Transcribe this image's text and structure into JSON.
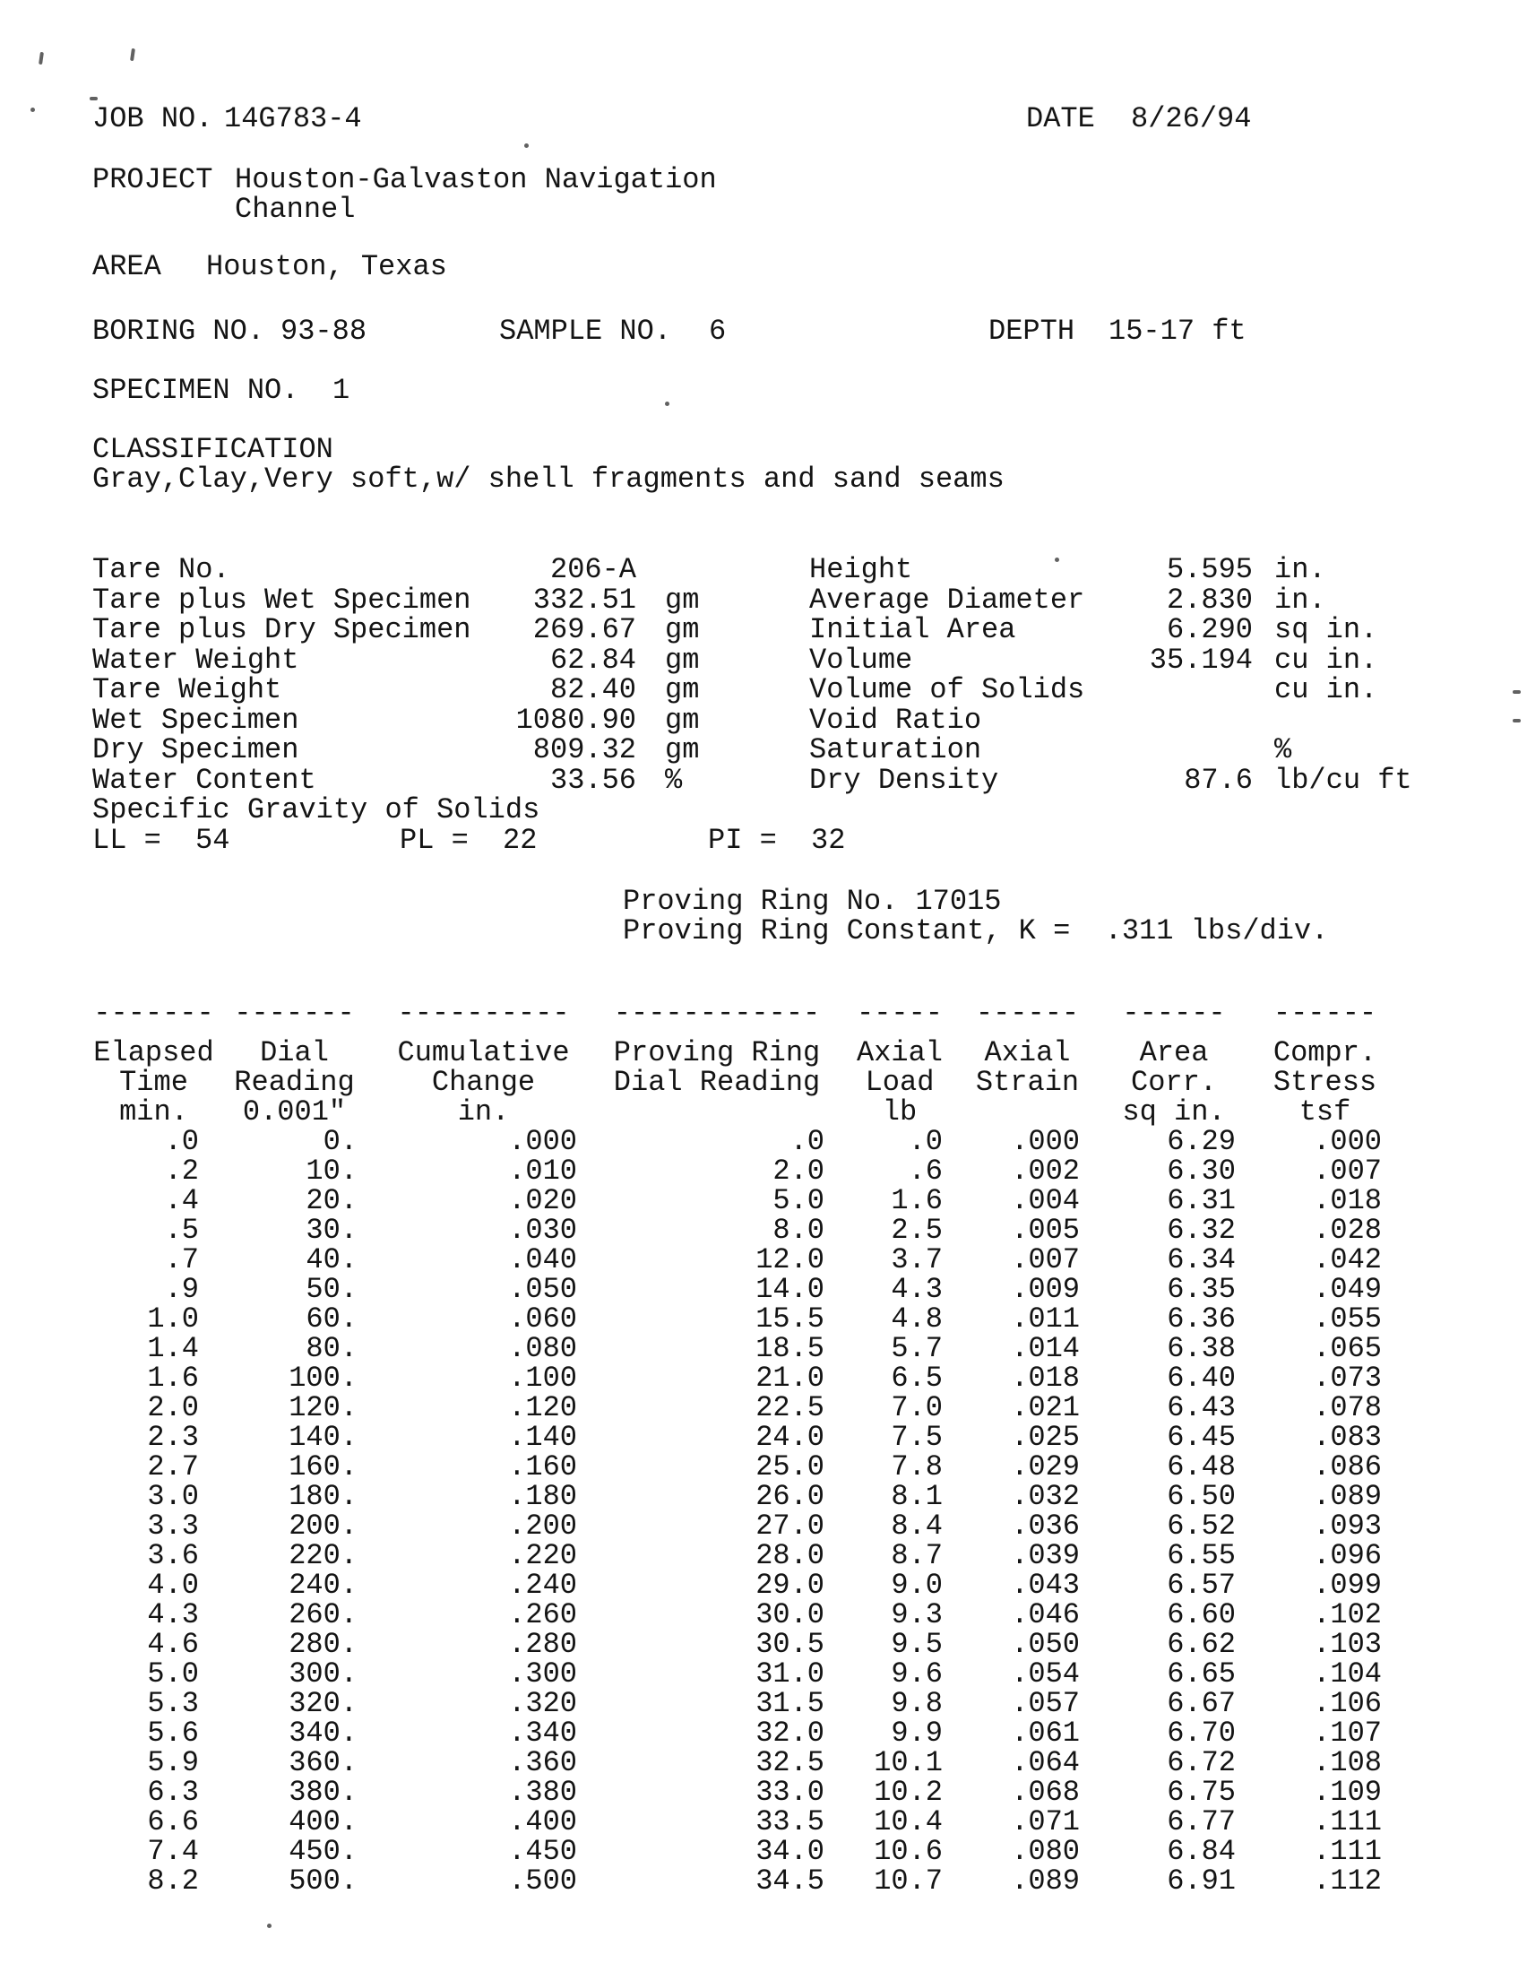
{
  "header": {
    "job_label": "JOB NO.",
    "job_value": "14G783-4",
    "date_label": "DATE",
    "date_value": "8/26/94",
    "project_label": "PROJECT",
    "project_line1": "Houston-Galvaston Navigation",
    "project_line2": "Channel",
    "area_label": "AREA",
    "area_value": "Houston, Texas",
    "boring_label": "BORING NO.",
    "boring_value": "93-88",
    "sample_label": "SAMPLE NO.",
    "sample_value": "6",
    "depth_label": "DEPTH",
    "depth_value": "15-17 ft",
    "specimen_label": "SPECIMEN NO.",
    "specimen_value": "1",
    "classification_label": "CLASSIFICATION",
    "classification_text": "Gray,Clay,Very soft,w/ shell fragments and sand seams"
  },
  "specimen_data": {
    "left": [
      {
        "label": "Tare No.",
        "value": "206-A",
        "unit": ""
      },
      {
        "label": "Tare plus Wet Specimen",
        "value": "332.51",
        "unit": "gm"
      },
      {
        "label": "Tare plus Dry Specimen",
        "value": "269.67",
        "unit": "gm"
      },
      {
        "label": "Water Weight",
        "value": "62.84",
        "unit": "gm"
      },
      {
        "label": "Tare Weight",
        "value": "82.40",
        "unit": "gm"
      },
      {
        "label": "Wet Specimen",
        "value": "1080.90",
        "unit": "gm"
      },
      {
        "label": "Dry Specimen",
        "value": "809.32",
        "unit": "gm"
      },
      {
        "label": "Water Content",
        "value": "33.56",
        "unit": "%"
      },
      {
        "label": "Specific Gravity of Solids",
        "value": "",
        "unit": ""
      }
    ],
    "right": [
      {
        "label": "Height",
        "value": "5.595",
        "unit": "in."
      },
      {
        "label": "Average Diameter",
        "value": "2.830",
        "unit": "in."
      },
      {
        "label": "Initial Area",
        "value": "6.290",
        "unit": "sq in."
      },
      {
        "label": "Volume",
        "value": "35.194",
        "unit": "cu in."
      },
      {
        "label": "Volume of Solids",
        "value": "",
        "unit": "cu in."
      },
      {
        "label": "Void Ratio",
        "value": "",
        "unit": ""
      },
      {
        "label": "Saturation",
        "value": "",
        "unit": "%"
      },
      {
        "label": "Dry Density",
        "value": "87.6",
        "unit": "lb/cu ft"
      }
    ],
    "atterberg": {
      "ll_label": "LL =",
      "ll_value": "54",
      "pl_label": "PL =",
      "pl_value": "22",
      "pi_label": "PI =",
      "pi_value": "32"
    },
    "proving_ring_no": "Proving Ring No. 17015",
    "proving_ring_constant": "Proving Ring Constant, K =  .311 lbs/div."
  },
  "table": {
    "header_rows": [
      [
        "Elapsed",
        "Dial",
        "Cumulative",
        "Proving Ring",
        "Axial",
        "Axial",
        "Area",
        "Compr."
      ],
      [
        "Time",
        "Reading",
        "Change",
        "Dial Reading",
        "Load",
        "Strain",
        "Corr.",
        "Stress"
      ],
      [
        "min.",
        "0.001\"",
        "in.",
        "",
        "lb",
        "",
        "sq in.",
        "tsf"
      ]
    ],
    "separator": [
      "-------",
      "-------",
      "----------",
      "------------",
      "-----",
      "------",
      "------",
      "------"
    ],
    "rows": [
      [
        ".0",
        "0.",
        ".000",
        ".0",
        ".0",
        ".000",
        "6.29",
        ".000"
      ],
      [
        ".2",
        "10.",
        ".010",
        "2.0",
        ".6",
        ".002",
        "6.30",
        ".007"
      ],
      [
        ".4",
        "20.",
        ".020",
        "5.0",
        "1.6",
        ".004",
        "6.31",
        ".018"
      ],
      [
        ".5",
        "30.",
        ".030",
        "8.0",
        "2.5",
        ".005",
        "6.32",
        ".028"
      ],
      [
        ".7",
        "40.",
        ".040",
        "12.0",
        "3.7",
        ".007",
        "6.34",
        ".042"
      ],
      [
        ".9",
        "50.",
        ".050",
        "14.0",
        "4.3",
        ".009",
        "6.35",
        ".049"
      ],
      [
        "1.0",
        "60.",
        ".060",
        "15.5",
        "4.8",
        ".011",
        "6.36",
        ".055"
      ],
      [
        "1.4",
        "80.",
        ".080",
        "18.5",
        "5.7",
        ".014",
        "6.38",
        ".065"
      ],
      [
        "1.6",
        "100.",
        ".100",
        "21.0",
        "6.5",
        ".018",
        "6.40",
        ".073"
      ],
      [
        "2.0",
        "120.",
        ".120",
        "22.5",
        "7.0",
        ".021",
        "6.43",
        ".078"
      ],
      [
        "2.3",
        "140.",
        ".140",
        "24.0",
        "7.5",
        ".025",
        "6.45",
        ".083"
      ],
      [
        "2.7",
        "160.",
        ".160",
        "25.0",
        "7.8",
        ".029",
        "6.48",
        ".086"
      ],
      [
        "3.0",
        "180.",
        ".180",
        "26.0",
        "8.1",
        ".032",
        "6.50",
        ".089"
      ],
      [
        "3.3",
        "200.",
        ".200",
        "27.0",
        "8.4",
        ".036",
        "6.52",
        ".093"
      ],
      [
        "3.6",
        "220.",
        ".220",
        "28.0",
        "8.7",
        ".039",
        "6.55",
        ".096"
      ],
      [
        "4.0",
        "240.",
        ".240",
        "29.0",
        "9.0",
        ".043",
        "6.57",
        ".099"
      ],
      [
        "4.3",
        "260.",
        ".260",
        "30.0",
        "9.3",
        ".046",
        "6.60",
        ".102"
      ],
      [
        "4.6",
        "280.",
        ".280",
        "30.5",
        "9.5",
        ".050",
        "6.62",
        ".103"
      ],
      [
        "5.0",
        "300.",
        ".300",
        "31.0",
        "9.6",
        ".054",
        "6.65",
        ".104"
      ],
      [
        "5.3",
        "320.",
        ".320",
        "31.5",
        "9.8",
        ".057",
        "6.67",
        ".106"
      ],
      [
        "5.6",
        "340.",
        ".340",
        "32.0",
        "9.9",
        ".061",
        "6.70",
        ".107"
      ],
      [
        "5.9",
        "360.",
        ".360",
        "32.5",
        "10.1",
        ".064",
        "6.72",
        ".108"
      ],
      [
        "6.3",
        "380.",
        ".380",
        "33.0",
        "10.2",
        ".068",
        "6.75",
        ".109"
      ],
      [
        "6.6",
        "400.",
        ".400",
        "33.5",
        "10.4",
        ".071",
        "6.77",
        ".111"
      ],
      [
        "7.4",
        "450.",
        ".450",
        "34.0",
        "10.6",
        ".080",
        "6.84",
        ".111"
      ],
      [
        "8.2",
        "500.",
        ".500",
        "34.5",
        "10.7",
        ".089",
        "6.91",
        ".112"
      ]
    ]
  }
}
